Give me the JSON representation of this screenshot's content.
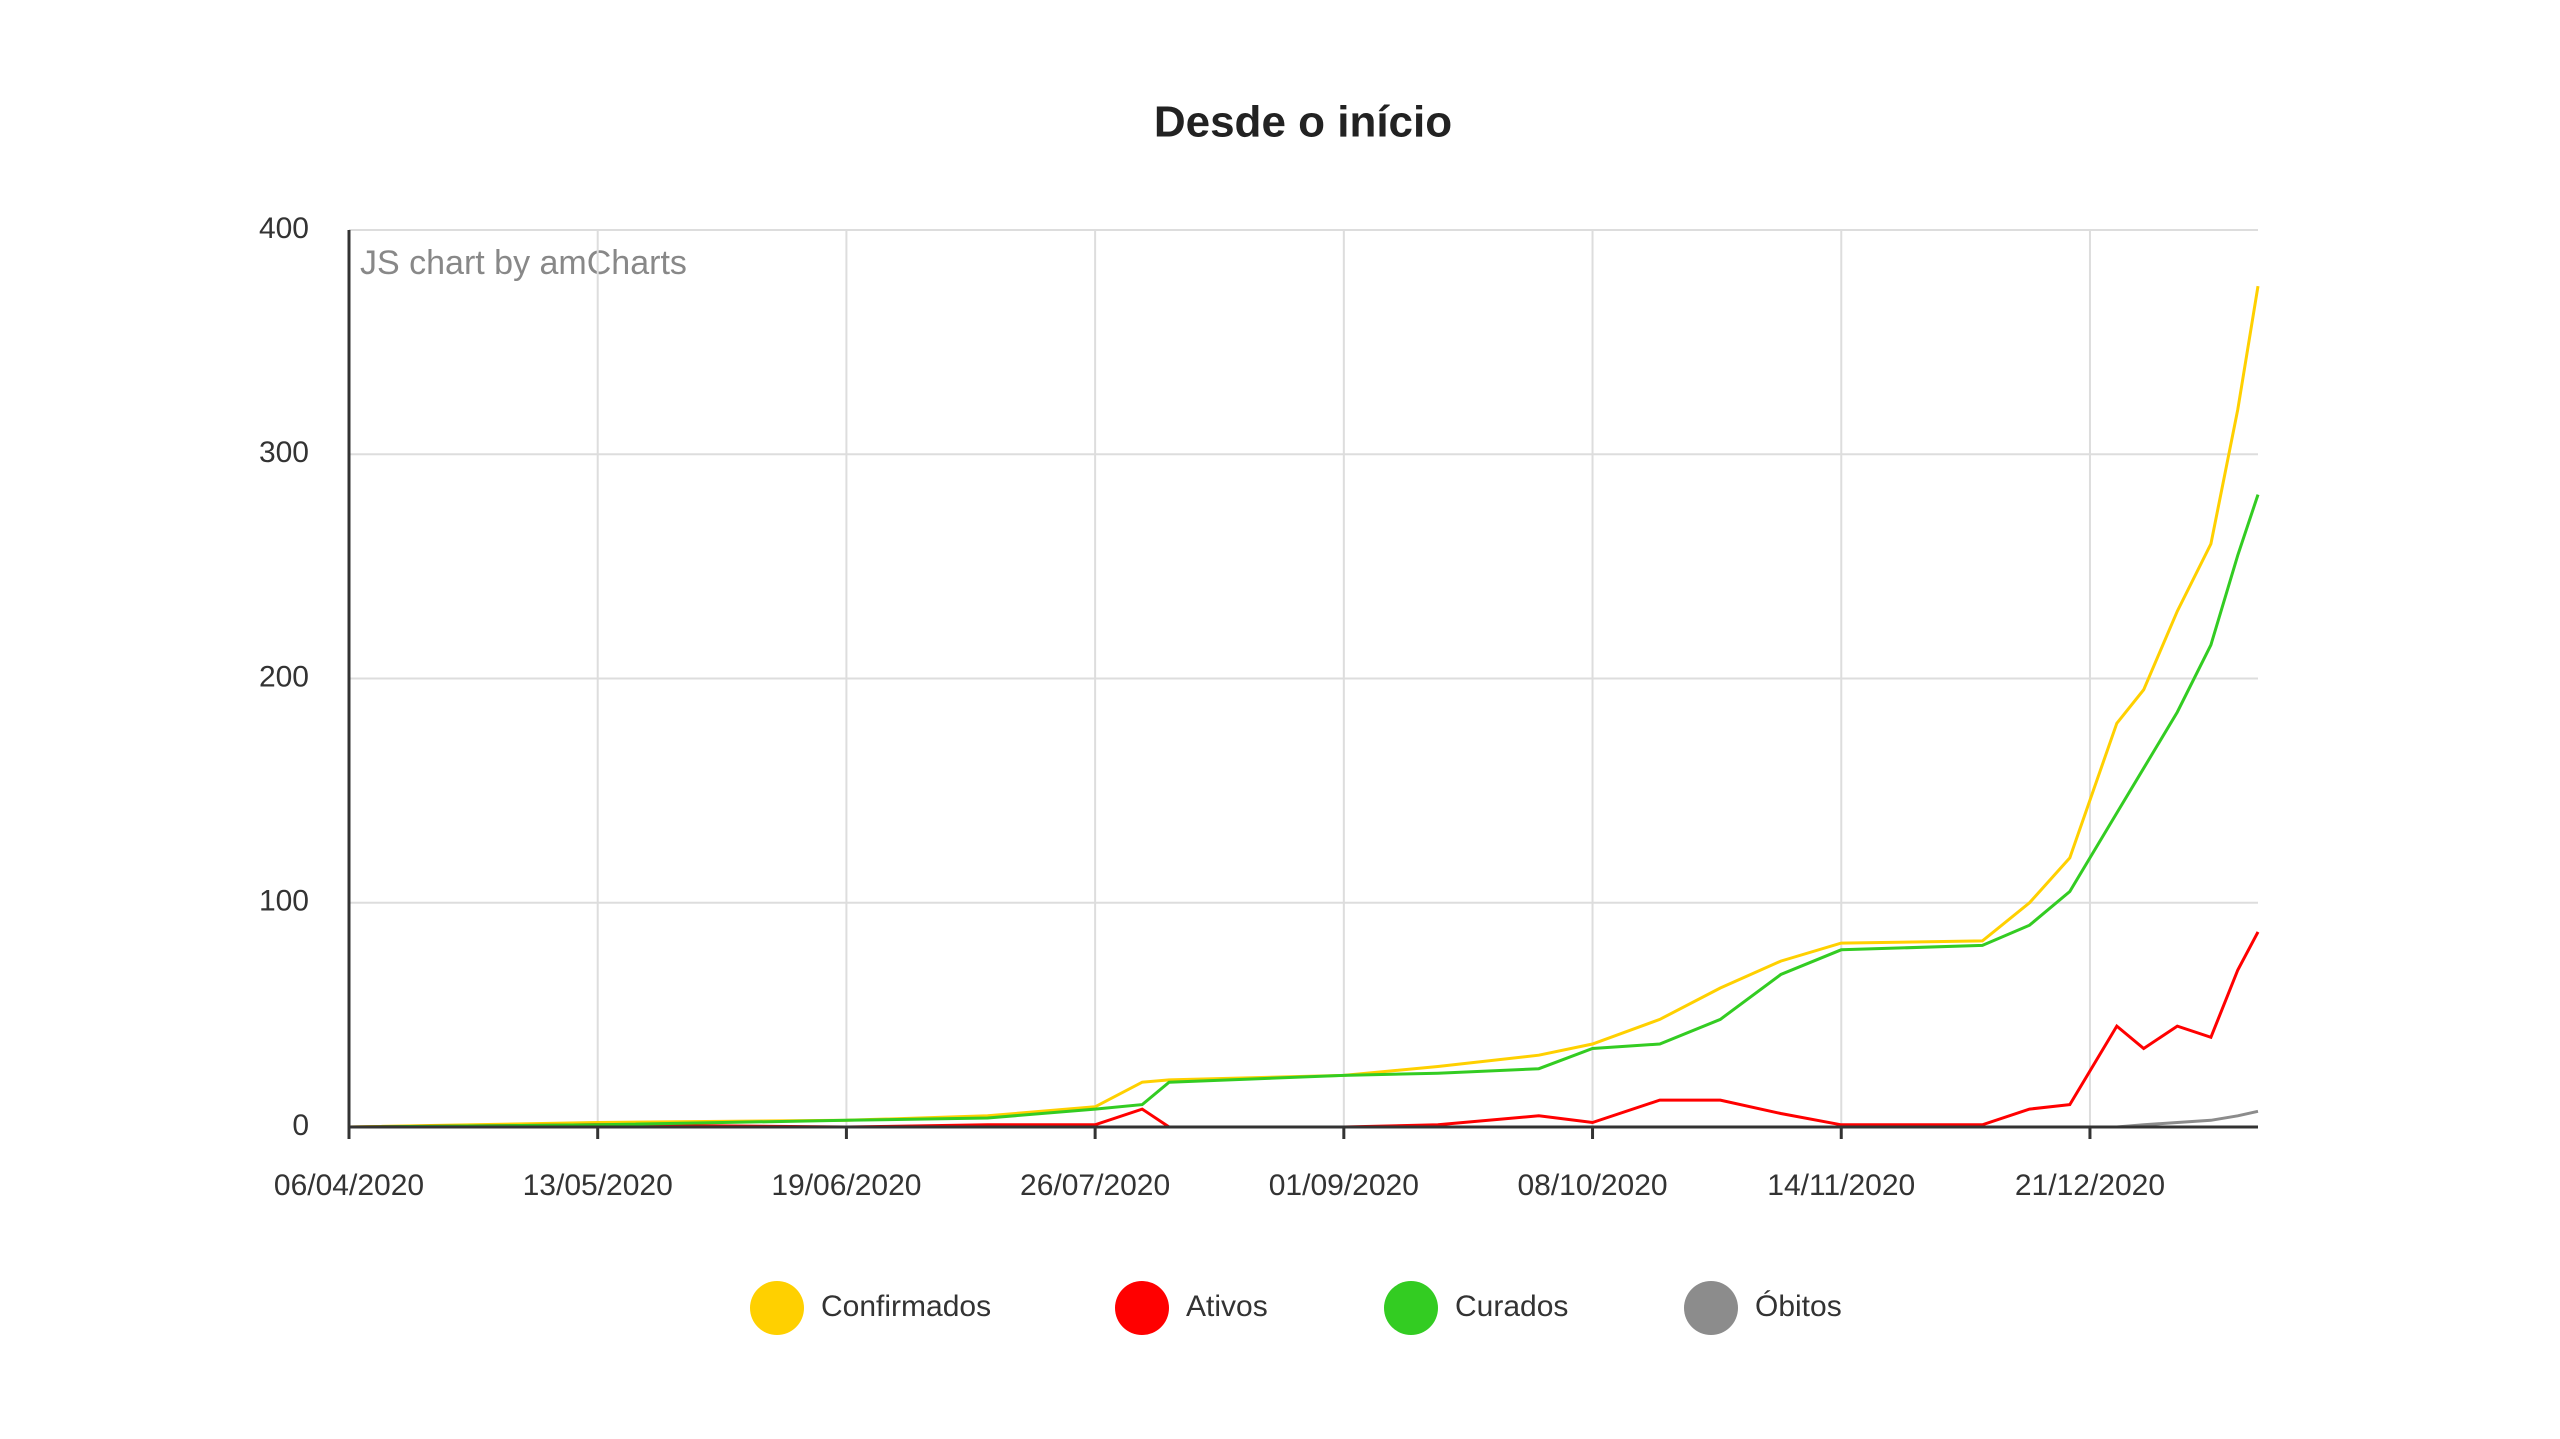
{
  "chart_data": {
    "type": "line",
    "title": "Desde o início",
    "watermark": "JS chart by amCharts",
    "x": [
      "06/04/2020",
      "13/05/2020",
      "19/06/2020",
      "10/07/2020",
      "26/07/2020",
      "02/08/2020",
      "06/08/2020",
      "01/09/2020",
      "15/09/2020",
      "30/09/2020",
      "08/10/2020",
      "18/10/2020",
      "27/10/2020",
      "05/11/2020",
      "14/11/2020",
      "05/12/2020",
      "12/12/2020",
      "18/12/2020",
      "25/12/2020",
      "29/12/2020",
      "03/01/2021",
      "08/01/2021",
      "12/01/2021",
      "15/01/2021"
    ],
    "series": [
      {
        "name": "Confirmados",
        "color": "#ffd000",
        "values": [
          0,
          2,
          3,
          5,
          9,
          20,
          21,
          23,
          27,
          32,
          37,
          48,
          62,
          74,
          82,
          83,
          100,
          120,
          180,
          195,
          230,
          260,
          320,
          375
        ]
      },
      {
        "name": "Ativos",
        "color": "#ff0000",
        "values": [
          0,
          1,
          0,
          1,
          1,
          8,
          0,
          0,
          1,
          5,
          2,
          12,
          12,
          6,
          1,
          1,
          8,
          10,
          45,
          35,
          45,
          40,
          70,
          87
        ]
      },
      {
        "name": "Curados",
        "color": "#33cc22",
        "values": [
          0,
          1,
          3,
          4,
          8,
          10,
          20,
          23,
          24,
          26,
          35,
          37,
          48,
          68,
          79,
          81,
          90,
          105,
          140,
          160,
          185,
          215,
          255,
          282
        ]
      },
      {
        "name": "Óbitos",
        "color": "#8c8c8c",
        "values": [
          0,
          0,
          0,
          0,
          0,
          0,
          0,
          0,
          0,
          0,
          0,
          0,
          0,
          0,
          0,
          0,
          0,
          0,
          0,
          1,
          2,
          3,
          5,
          7
        ]
      }
    ],
    "xlim": [
      "06/04/2020",
      "15/01/2021"
    ],
    "xticks": [
      "06/04/2020",
      "13/05/2020",
      "19/06/2020",
      "26/07/2020",
      "01/09/2020",
      "08/10/2020",
      "14/11/2020",
      "21/12/2020"
    ],
    "ylim": [
      0,
      400
    ],
    "yticks": [
      0,
      100,
      200,
      300,
      400
    ],
    "grid": true
  }
}
